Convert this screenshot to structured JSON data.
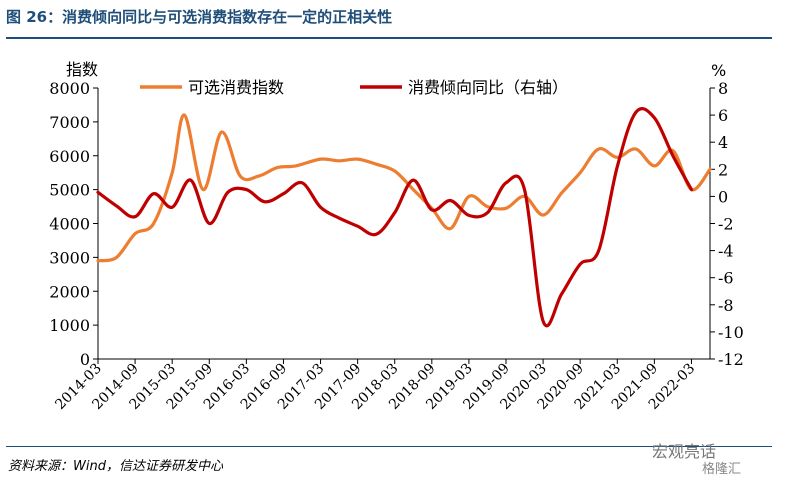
{
  "header": {
    "title": "图 26：消费倾向同比与可选消费指数存在一定的正相关性"
  },
  "footer": {
    "source": "资料来源：Wind，信达证券研发中心",
    "watermark": "宏观亮话",
    "watermark2": "格隆汇"
  },
  "chart_data": {
    "type": "line",
    "left_unit": "指数",
    "right_unit": "%",
    "left_ticks": [
      "0",
      "1000",
      "2000",
      "3000",
      "4000",
      "5000",
      "6000",
      "7000",
      "8000"
    ],
    "right_ticks": [
      "-12",
      "-10",
      "-8",
      "-6",
      "-4",
      "-2",
      "0",
      "2",
      "4",
      "6",
      "8"
    ],
    "y_left_lim": [
      0,
      8000
    ],
    "y_right_lim": [
      -12,
      8
    ],
    "x_range": [
      "2014-03",
      "2022-06"
    ],
    "x_tick_labels": [
      "2014-03",
      "2014-09",
      "2015-03",
      "2015-09",
      "2016-03",
      "2016-09",
      "2017-03",
      "2017-09",
      "2018-03",
      "2018-09",
      "2019-03",
      "2019-09",
      "2020-03",
      "2020-09",
      "2021-03",
      "2021-09",
      "2022-03"
    ],
    "legend_position": "top",
    "grid": false,
    "series": [
      {
        "name": "可选消费指数",
        "axis": "left",
        "color": "#ed7d31",
        "points": [
          [
            "2014-03",
            2900
          ],
          [
            "2014-06",
            3000
          ],
          [
            "2014-09",
            3700
          ],
          [
            "2014-12",
            4000
          ],
          [
            "2015-03",
            5500
          ],
          [
            "2015-05",
            7200
          ],
          [
            "2015-08",
            5000
          ],
          [
            "2015-11",
            6700
          ],
          [
            "2016-02",
            5400
          ],
          [
            "2016-05",
            5400
          ],
          [
            "2016-08",
            5650
          ],
          [
            "2016-11",
            5700
          ],
          [
            "2017-03",
            5900
          ],
          [
            "2017-06",
            5850
          ],
          [
            "2017-09",
            5900
          ],
          [
            "2017-12",
            5750
          ],
          [
            "2018-03",
            5550
          ],
          [
            "2018-06",
            5000
          ],
          [
            "2018-09",
            4450
          ],
          [
            "2018-12",
            3850
          ],
          [
            "2019-03",
            4800
          ],
          [
            "2019-06",
            4500
          ],
          [
            "2019-09",
            4450
          ],
          [
            "2019-12",
            4800
          ],
          [
            "2020-03",
            4250
          ],
          [
            "2020-06",
            4900
          ],
          [
            "2020-09",
            5500
          ],
          [
            "2020-12",
            6200
          ],
          [
            "2021-03",
            5950
          ],
          [
            "2021-06",
            6200
          ],
          [
            "2021-09",
            5700
          ],
          [
            "2021-12",
            6150
          ],
          [
            "2022-03",
            5000
          ],
          [
            "2022-06",
            5600
          ]
        ]
      },
      {
        "name": "消费倾向同比（右轴）",
        "axis": "right",
        "color": "#c00000",
        "points": [
          [
            "2014-03",
            0.3
          ],
          [
            "2014-06",
            -0.7
          ],
          [
            "2014-09",
            -1.5
          ],
          [
            "2014-12",
            0.2
          ],
          [
            "2015-03",
            -0.8
          ],
          [
            "2015-06",
            1.2
          ],
          [
            "2015-09",
            -2.0
          ],
          [
            "2015-12",
            0.3
          ],
          [
            "2016-03",
            0.5
          ],
          [
            "2016-06",
            -0.4
          ],
          [
            "2016-09",
            0.2
          ],
          [
            "2016-12",
            1.0
          ],
          [
            "2017-03",
            -0.8
          ],
          [
            "2017-06",
            -1.6
          ],
          [
            "2017-09",
            -2.2
          ],
          [
            "2017-12",
            -2.8
          ],
          [
            "2018-03",
            -1.2
          ],
          [
            "2018-06",
            1.2
          ],
          [
            "2018-09",
            -1.0
          ],
          [
            "2018-12",
            -0.3
          ],
          [
            "2019-03",
            -1.4
          ],
          [
            "2019-06",
            -1.2
          ],
          [
            "2019-09",
            1.0
          ],
          [
            "2019-12",
            0.5
          ],
          [
            "2020-03",
            -9.2
          ],
          [
            "2020-06",
            -7.2
          ],
          [
            "2020-09",
            -5.0
          ],
          [
            "2020-12",
            -4.0
          ],
          [
            "2021-03",
            2.2
          ],
          [
            "2021-06",
            6.2
          ],
          [
            "2021-09",
            5.8
          ],
          [
            "2021-12",
            3.0
          ],
          [
            "2022-03",
            0.5
          ]
        ]
      }
    ]
  }
}
